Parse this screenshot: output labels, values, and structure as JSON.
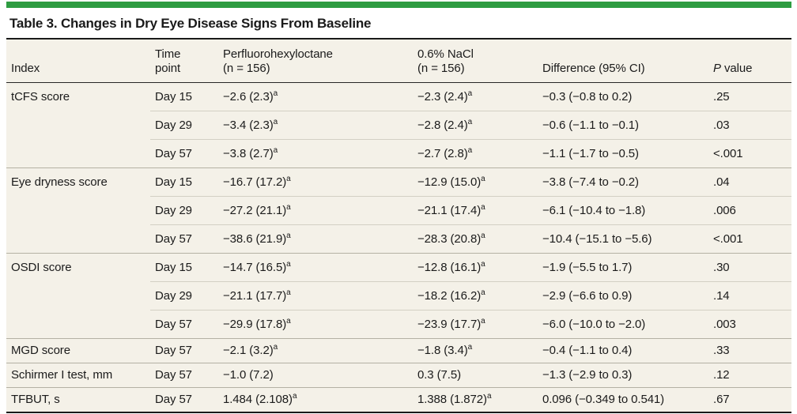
{
  "title": "Table 3. Changes in Dry Eye Disease Signs From Baseline",
  "colors": {
    "accent_green": "#2e9c41",
    "table_background": "#f4f1e8",
    "rule_dark": "#1a1a1a",
    "rule_group": "#b4b1a4",
    "rule_inner": "#d3d0c4"
  },
  "header": {
    "index": "Index",
    "time_point": "Time point",
    "drug_name": "Perfluorohexyloctane",
    "drug_n": "(n = 156)",
    "control_name": "0.6% NaCl",
    "control_n": "(n = 156)",
    "difference": "Difference (95% CI)",
    "p_italic": "P",
    "p_rest": "value"
  },
  "groups": [
    {
      "index": "tCFS score",
      "rows": [
        {
          "time": "Day 15",
          "drug": "−2.6 (2.3)",
          "drug_sup": "a",
          "control": "−2.3 (2.4)",
          "control_sup": "a",
          "diff": "−0.3 (−0.8 to 0.2)",
          "p": ".25"
        },
        {
          "time": "Day 29",
          "drug": "−3.4 (2.3)",
          "drug_sup": "a",
          "control": "−2.8 (2.4)",
          "control_sup": "a",
          "diff": "−0.6 (−1.1 to −0.1)",
          "p": ".03"
        },
        {
          "time": "Day 57",
          "drug": "−3.8 (2.7)",
          "drug_sup": "a",
          "control": "−2.7 (2.8)",
          "control_sup": "a",
          "diff": "−1.1 (−1.7 to −0.5)",
          "p": "<.001"
        }
      ]
    },
    {
      "index": "Eye dryness score",
      "rows": [
        {
          "time": "Day 15",
          "drug": "−16.7 (17.2)",
          "drug_sup": "a",
          "control": "−12.9 (15.0)",
          "control_sup": "a",
          "diff": "−3.8 (−7.4 to −0.2)",
          "p": ".04"
        },
        {
          "time": "Day 29",
          "drug": "−27.2 (21.1)",
          "drug_sup": "a",
          "control": "−21.1 (17.4)",
          "control_sup": "a",
          "diff": "−6.1 (−10.4 to −1.8)",
          "p": ".006"
        },
        {
          "time": "Day 57",
          "drug": "−38.6 (21.9)",
          "drug_sup": "a",
          "control": "−28.3 (20.8)",
          "control_sup": "a",
          "diff": "−10.4 (−15.1 to −5.6)",
          "p": "<.001"
        }
      ]
    },
    {
      "index": "OSDI score",
      "rows": [
        {
          "time": "Day 15",
          "drug": "−14.7 (16.5)",
          "drug_sup": "a",
          "control": "−12.8 (16.1)",
          "control_sup": "a",
          "diff": "−1.9 (−5.5 to 1.7)",
          "p": ".30"
        },
        {
          "time": "Day 29",
          "drug": "−21.1 (17.7)",
          "drug_sup": "a",
          "control": "−18.2 (16.2)",
          "control_sup": "a",
          "diff": "−2.9 (−6.6 to 0.9)",
          "p": ".14"
        },
        {
          "time": "Day 57",
          "drug": "−29.9 (17.8)",
          "drug_sup": "a",
          "control": "−23.9 (17.7)",
          "control_sup": "a",
          "diff": "−6.0 (−10.0 to −2.0)",
          "p": ".003"
        }
      ]
    },
    {
      "index": "MGD score",
      "rows": [
        {
          "time": "Day 57",
          "drug": "−2.1 (3.2)",
          "drug_sup": "a",
          "control": "−1.8 (3.4)",
          "control_sup": "a",
          "diff": "−0.4 (−1.1 to 0.4)",
          "p": ".33"
        }
      ]
    },
    {
      "index": "Schirmer I test, mm",
      "rows": [
        {
          "time": "Day 57",
          "drug": "−1.0 (7.2)",
          "control": "0.3 (7.5)",
          "diff": "−1.3 (−2.9 to 0.3)",
          "p": ".12"
        }
      ]
    },
    {
      "index": "TFBUT, s",
      "rows": [
        {
          "time": "Day 57",
          "drug": "1.484 (2.108)",
          "drug_sup": "a",
          "control": "1.388 (1.872)",
          "control_sup": "a",
          "diff": "0.096 (−0.349 to 0.541)",
          "p": ".67"
        }
      ]
    }
  ]
}
